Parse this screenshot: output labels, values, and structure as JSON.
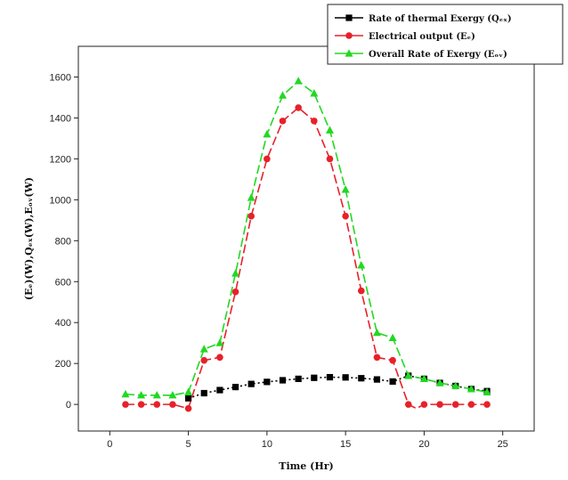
{
  "chart_data": {
    "type": "line",
    "xlabel": "Time (Hr)",
    "ylabel": "(Eₑ)(W),Qₑₓ(W),Eₒᵥ(W)",
    "xlim": [
      -2,
      27
    ],
    "ylim": [
      -130,
      1750
    ],
    "xticks": [
      0,
      5,
      10,
      15,
      20,
      25
    ],
    "yticks": [
      0,
      200,
      400,
      600,
      800,
      1000,
      1200,
      1400,
      1600
    ],
    "legend_position": "top-right",
    "grid": false,
    "series": [
      {
        "name": "Rate of thermal Exergy (Qₑₓ)",
        "color": "#000000",
        "marker": "square",
        "dash": "dotted",
        "points": [
          [
            5,
            30
          ],
          [
            6,
            55
          ],
          [
            7,
            70
          ],
          [
            8,
            85
          ],
          [
            9,
            100
          ],
          [
            10,
            110
          ],
          [
            11,
            118
          ],
          [
            12,
            125
          ],
          [
            13,
            130
          ],
          [
            14,
            133
          ],
          [
            15,
            132
          ],
          [
            16,
            128
          ],
          [
            17,
            122
          ],
          [
            18,
            112
          ],
          [
            19,
            140
          ],
          [
            20,
            125
          ],
          [
            21,
            105
          ],
          [
            22,
            90
          ],
          [
            23,
            75
          ],
          [
            24,
            65
          ]
        ]
      },
      {
        "name": "Electrical output (Eₑ)",
        "color": "#e8202a",
        "marker": "circle",
        "dash": "dashed",
        "points": [
          [
            1,
            0
          ],
          [
            2,
            0
          ],
          [
            3,
            0
          ],
          [
            4,
            0
          ],
          [
            5,
            -20
          ],
          [
            5.2,
            30
          ],
          [
            6,
            215
          ],
          [
            7,
            230
          ],
          [
            8,
            550
          ],
          [
            9,
            920
          ],
          [
            10,
            1200
          ],
          [
            11,
            1385
          ],
          [
            12,
            1450
          ],
          [
            13,
            1385
          ],
          [
            14,
            1200
          ],
          [
            15,
            920
          ],
          [
            16,
            555
          ],
          [
            17,
            230
          ],
          [
            18,
            215
          ],
          [
            19,
            0
          ],
          [
            19.5,
            -20
          ],
          [
            20,
            0
          ],
          [
            21,
            0
          ],
          [
            22,
            0
          ],
          [
            23,
            0
          ],
          [
            24,
            0
          ]
        ]
      },
      {
        "name": "Overall Rate of Exergy (Eₒᵥ)",
        "color": "#22d822",
        "marker": "triangle",
        "dash": "dashed",
        "points": [
          [
            1,
            50
          ],
          [
            2,
            45
          ],
          [
            3,
            45
          ],
          [
            4,
            45
          ],
          [
            5,
            60
          ],
          [
            6,
            270
          ],
          [
            7,
            300
          ],
          [
            8,
            640
          ],
          [
            9,
            1010
          ],
          [
            10,
            1320
          ],
          [
            11,
            1510
          ],
          [
            12,
            1580
          ],
          [
            13,
            1520
          ],
          [
            14,
            1340
          ],
          [
            15,
            1050
          ],
          [
            16,
            680
          ],
          [
            17,
            350
          ],
          [
            18,
            325
          ],
          [
            19,
            140
          ],
          [
            20,
            125
          ],
          [
            21,
            105
          ],
          [
            22,
            90
          ],
          [
            23,
            75
          ],
          [
            24,
            60
          ]
        ]
      }
    ]
  }
}
